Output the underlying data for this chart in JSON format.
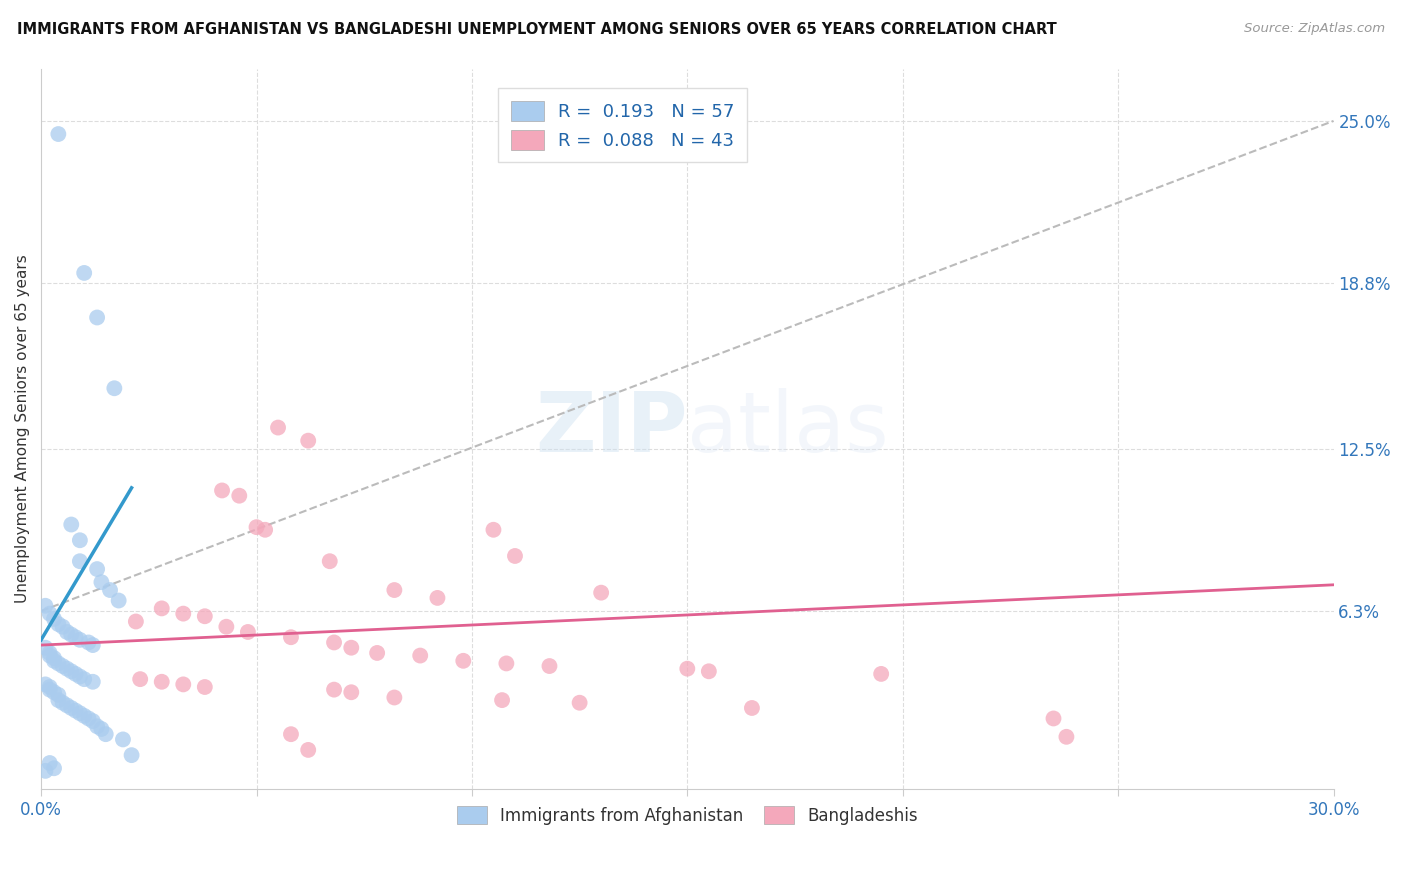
{
  "title": "IMMIGRANTS FROM AFGHANISTAN VS BANGLADESHI UNEMPLOYMENT AMONG SENIORS OVER 65 YEARS CORRELATION CHART",
  "source": "Source: ZipAtlas.com",
  "ylabel": "Unemployment Among Seniors over 65 years",
  "xlim": [
    0.0,
    0.3
  ],
  "ylim": [
    -0.005,
    0.27
  ],
  "right_yticks": [
    0.063,
    0.125,
    0.188,
    0.25
  ],
  "right_yticklabels": [
    "6.3%",
    "12.5%",
    "18.8%",
    "25.0%"
  ],
  "watermark": "ZIPatlas",
  "blue_color": "#aaccee",
  "pink_color": "#f4a8bb",
  "blue_scatter": [
    [
      0.004,
      0.245
    ],
    [
      0.01,
      0.192
    ],
    [
      0.013,
      0.175
    ],
    [
      0.017,
      0.148
    ],
    [
      0.007,
      0.096
    ],
    [
      0.009,
      0.09
    ],
    [
      0.009,
      0.082
    ],
    [
      0.013,
      0.079
    ],
    [
      0.014,
      0.074
    ],
    [
      0.016,
      0.071
    ],
    [
      0.018,
      0.067
    ],
    [
      0.001,
      0.065
    ],
    [
      0.002,
      0.062
    ],
    [
      0.003,
      0.06
    ],
    [
      0.004,
      0.058
    ],
    [
      0.005,
      0.057
    ],
    [
      0.006,
      0.055
    ],
    [
      0.007,
      0.054
    ],
    [
      0.008,
      0.053
    ],
    [
      0.009,
      0.052
    ],
    [
      0.011,
      0.051
    ],
    [
      0.012,
      0.05
    ],
    [
      0.001,
      0.049
    ],
    [
      0.002,
      0.047
    ],
    [
      0.002,
      0.046
    ],
    [
      0.003,
      0.045
    ],
    [
      0.003,
      0.044
    ],
    [
      0.004,
      0.043
    ],
    [
      0.005,
      0.042
    ],
    [
      0.006,
      0.041
    ],
    [
      0.007,
      0.04
    ],
    [
      0.008,
      0.039
    ],
    [
      0.009,
      0.038
    ],
    [
      0.01,
      0.037
    ],
    [
      0.012,
      0.036
    ],
    [
      0.001,
      0.035
    ],
    [
      0.002,
      0.034
    ],
    [
      0.002,
      0.033
    ],
    [
      0.003,
      0.032
    ],
    [
      0.004,
      0.031
    ],
    [
      0.004,
      0.029
    ],
    [
      0.005,
      0.028
    ],
    [
      0.006,
      0.027
    ],
    [
      0.007,
      0.026
    ],
    [
      0.008,
      0.025
    ],
    [
      0.009,
      0.024
    ],
    [
      0.01,
      0.023
    ],
    [
      0.011,
      0.022
    ],
    [
      0.012,
      0.021
    ],
    [
      0.013,
      0.019
    ],
    [
      0.014,
      0.018
    ],
    [
      0.015,
      0.016
    ],
    [
      0.019,
      0.014
    ],
    [
      0.021,
      0.008
    ],
    [
      0.002,
      0.005
    ],
    [
      0.003,
      0.003
    ],
    [
      0.001,
      0.002
    ]
  ],
  "pink_scatter": [
    [
      0.055,
      0.133
    ],
    [
      0.062,
      0.128
    ],
    [
      0.042,
      0.109
    ],
    [
      0.046,
      0.107
    ],
    [
      0.05,
      0.095
    ],
    [
      0.052,
      0.094
    ],
    [
      0.105,
      0.094
    ],
    [
      0.11,
      0.084
    ],
    [
      0.067,
      0.082
    ],
    [
      0.082,
      0.071
    ],
    [
      0.13,
      0.07
    ],
    [
      0.092,
      0.068
    ],
    [
      0.028,
      0.064
    ],
    [
      0.033,
      0.062
    ],
    [
      0.038,
      0.061
    ],
    [
      0.022,
      0.059
    ],
    [
      0.043,
      0.057
    ],
    [
      0.048,
      0.055
    ],
    [
      0.058,
      0.053
    ],
    [
      0.068,
      0.051
    ],
    [
      0.072,
      0.049
    ],
    [
      0.078,
      0.047
    ],
    [
      0.088,
      0.046
    ],
    [
      0.098,
      0.044
    ],
    [
      0.108,
      0.043
    ],
    [
      0.118,
      0.042
    ],
    [
      0.15,
      0.041
    ],
    [
      0.155,
      0.04
    ],
    [
      0.195,
      0.039
    ],
    [
      0.023,
      0.037
    ],
    [
      0.028,
      0.036
    ],
    [
      0.033,
      0.035
    ],
    [
      0.038,
      0.034
    ],
    [
      0.068,
      0.033
    ],
    [
      0.072,
      0.032
    ],
    [
      0.082,
      0.03
    ],
    [
      0.107,
      0.029
    ],
    [
      0.125,
      0.028
    ],
    [
      0.165,
      0.026
    ],
    [
      0.235,
      0.022
    ],
    [
      0.058,
      0.016
    ],
    [
      0.062,
      0.01
    ],
    [
      0.238,
      0.015
    ]
  ],
  "blue_line": [
    [
      0.0,
      0.052
    ],
    [
      0.021,
      0.11
    ]
  ],
  "pink_line": [
    [
      0.0,
      0.05
    ],
    [
      0.3,
      0.073
    ]
  ],
  "dashed_line": [
    [
      0.0,
      0.063
    ],
    [
      0.3,
      0.25
    ]
  ]
}
